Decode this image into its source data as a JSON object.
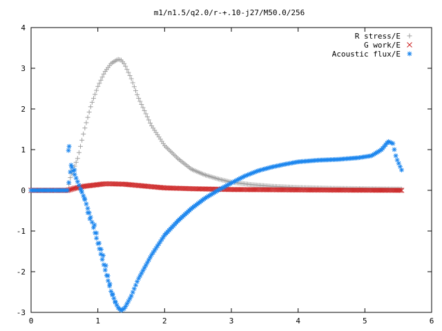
{
  "chart_data": {
    "type": "scatter",
    "title": "m1/n1.5/q2.0/r-+.10-j27/M50.0/256",
    "xlabel": "",
    "ylabel": "",
    "xlim": [
      0,
      6
    ],
    "ylim": [
      -3,
      4
    ],
    "x_ticks": [
      0,
      1,
      2,
      3,
      4,
      5,
      6
    ],
    "y_ticks": [
      -3,
      -2,
      -1,
      0,
      1,
      2,
      3,
      4
    ],
    "grid": false,
    "legend_position": "top-right",
    "series": [
      {
        "name": "R stress/E",
        "marker": "+",
        "color": "#a0a0a0",
        "anchors": [
          [
            0.0,
            0.0
          ],
          [
            0.55,
            0.0
          ],
          [
            0.58,
            0.28
          ],
          [
            0.62,
            0.45
          ],
          [
            0.7,
            0.8
          ],
          [
            0.8,
            1.5
          ],
          [
            0.9,
            2.1
          ],
          [
            1.0,
            2.55
          ],
          [
            1.1,
            2.9
          ],
          [
            1.2,
            3.12
          ],
          [
            1.3,
            3.22
          ],
          [
            1.35,
            3.2
          ],
          [
            1.4,
            3.1
          ],
          [
            1.5,
            2.75
          ],
          [
            1.6,
            2.3
          ],
          [
            1.7,
            1.95
          ],
          [
            1.8,
            1.6
          ],
          [
            2.0,
            1.1
          ],
          [
            2.2,
            0.78
          ],
          [
            2.4,
            0.52
          ],
          [
            2.6,
            0.38
          ],
          [
            2.8,
            0.28
          ],
          [
            3.0,
            0.2
          ],
          [
            3.3,
            0.14
          ],
          [
            3.6,
            0.1
          ],
          [
            4.0,
            0.07
          ],
          [
            4.5,
            0.05
          ],
          [
            5.0,
            0.04
          ],
          [
            5.55,
            0.03
          ]
        ]
      },
      {
        "name": "G work/E",
        "marker": "x",
        "color": "#cc2222",
        "anchors": [
          [
            0.0,
            0.0
          ],
          [
            0.55,
            0.0
          ],
          [
            0.65,
            0.05
          ],
          [
            0.8,
            0.1
          ],
          [
            1.0,
            0.14
          ],
          [
            1.1,
            0.16
          ],
          [
            1.2,
            0.16
          ],
          [
            1.4,
            0.15
          ],
          [
            1.6,
            0.12
          ],
          [
            1.8,
            0.09
          ],
          [
            2.0,
            0.06
          ],
          [
            2.4,
            0.04
          ],
          [
            3.0,
            0.02
          ],
          [
            4.0,
            0.01
          ],
          [
            5.55,
            0.0
          ]
        ]
      },
      {
        "name": "Acoustic flux/E",
        "marker": "*",
        "color": "#1c86ee",
        "anchors": [
          [
            0.0,
            0.0
          ],
          [
            0.55,
            0.0
          ],
          [
            0.6,
            0.6
          ],
          [
            0.7,
            0.2
          ],
          [
            0.8,
            -0.2
          ],
          [
            0.9,
            -0.7
          ],
          [
            1.0,
            -1.3
          ],
          [
            1.1,
            -1.9
          ],
          [
            1.2,
            -2.5
          ],
          [
            1.3,
            -2.88
          ],
          [
            1.35,
            -2.95
          ],
          [
            1.4,
            -2.9
          ],
          [
            1.5,
            -2.6
          ],
          [
            1.6,
            -2.2
          ],
          [
            1.8,
            -1.6
          ],
          [
            2.0,
            -1.1
          ],
          [
            2.2,
            -0.75
          ],
          [
            2.4,
            -0.45
          ],
          [
            2.6,
            -0.2
          ],
          [
            2.8,
            0.0
          ],
          [
            3.0,
            0.18
          ],
          [
            3.2,
            0.35
          ],
          [
            3.4,
            0.48
          ],
          [
            3.6,
            0.57
          ],
          [
            3.8,
            0.64
          ],
          [
            4.0,
            0.7
          ],
          [
            4.3,
            0.74
          ],
          [
            4.6,
            0.76
          ],
          [
            4.9,
            0.8
          ],
          [
            5.1,
            0.85
          ],
          [
            5.25,
            1.0
          ],
          [
            5.35,
            1.2
          ],
          [
            5.42,
            1.15
          ],
          [
            5.47,
            0.8
          ],
          [
            5.55,
            0.5
          ]
        ],
        "extra_points": [
          [
            0.56,
            0.98
          ],
          [
            0.57,
            1.08
          ],
          [
            0.6,
            0.62
          ],
          [
            0.65,
            0.5
          ],
          [
            0.75,
            0.0
          ],
          [
            0.8,
            -0.2
          ],
          [
            0.85,
            -0.55
          ],
          [
            0.88,
            -0.7
          ],
          [
            0.95,
            -0.85
          ],
          [
            0.98,
            -1.05
          ],
          [
            1.02,
            -1.3
          ],
          [
            1.05,
            -1.45
          ],
          [
            1.08,
            -1.6
          ],
          [
            1.12,
            -1.85
          ],
          [
            1.15,
            -2.1
          ],
          [
            1.18,
            -2.3
          ],
          [
            1.22,
            -2.55
          ],
          [
            1.26,
            -2.75
          ]
        ]
      }
    ]
  }
}
